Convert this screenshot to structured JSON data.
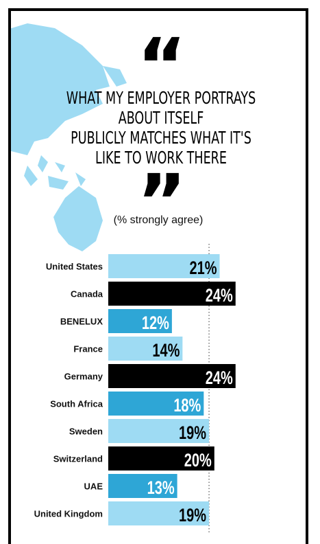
{
  "quote_open": "“",
  "quote_close": "”",
  "statement": "WHAT MY EMPLOYER PORTRAYS ABOUT ITSELF\nPUBLICLY MATCHES WHAT IT'S\nLIKE TO WORK THERE",
  "subtitle": "(% strongly agree)",
  "colors": {
    "light": "#9edbf3",
    "mid": "#2ea6d6",
    "dark": "#000000",
    "map": "#9edbf3"
  },
  "chart_data": {
    "type": "bar",
    "orientation": "horizontal",
    "value_suffix": "%",
    "categories": [
      "United States",
      "Canada",
      "BENELUX",
      "France",
      "Germany",
      "South Africa",
      "Sweden",
      "Switzerland",
      "UAE",
      "United Kingdom"
    ],
    "values": [
      21,
      24,
      12,
      14,
      24,
      18,
      19,
      20,
      13,
      19
    ],
    "bar_colors": [
      "light",
      "dark",
      "mid",
      "light",
      "dark",
      "mid",
      "light",
      "dark",
      "mid",
      "light"
    ],
    "reference_line": {
      "value": 19,
      "style": "dotted"
    },
    "xlim": [
      0,
      30
    ]
  }
}
